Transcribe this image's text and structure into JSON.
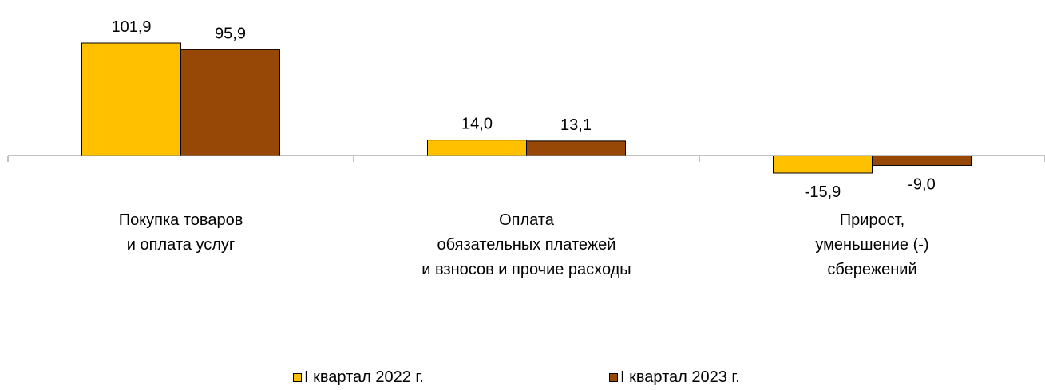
{
  "chart_data": {
    "type": "bar",
    "categories": [
      [
        "Покупка товаров",
        "и оплата услуг"
      ],
      [
        "Оплата",
        "обязательных платежей",
        "и взносов и прочие расходы"
      ],
      [
        "Прирост,",
        "уменьшение (-)",
        "сбережений"
      ]
    ],
    "series": [
      {
        "name": "I квартал 2022 г.",
        "values": [
          101.9,
          14.0,
          -15.9
        ],
        "labels": [
          "101,9",
          "14,0",
          "-15,9"
        ],
        "color": "#FFC000"
      },
      {
        "name": "I квартал 2023 г.",
        "values": [
          95.9,
          13.1,
          -9.0
        ],
        "labels": [
          "95,9",
          "13,1",
          "-9,0"
        ],
        "color": "#974706"
      }
    ],
    "ylim": [
      -15.9,
      101.9
    ],
    "grid": false,
    "legend_position": "bottom"
  }
}
